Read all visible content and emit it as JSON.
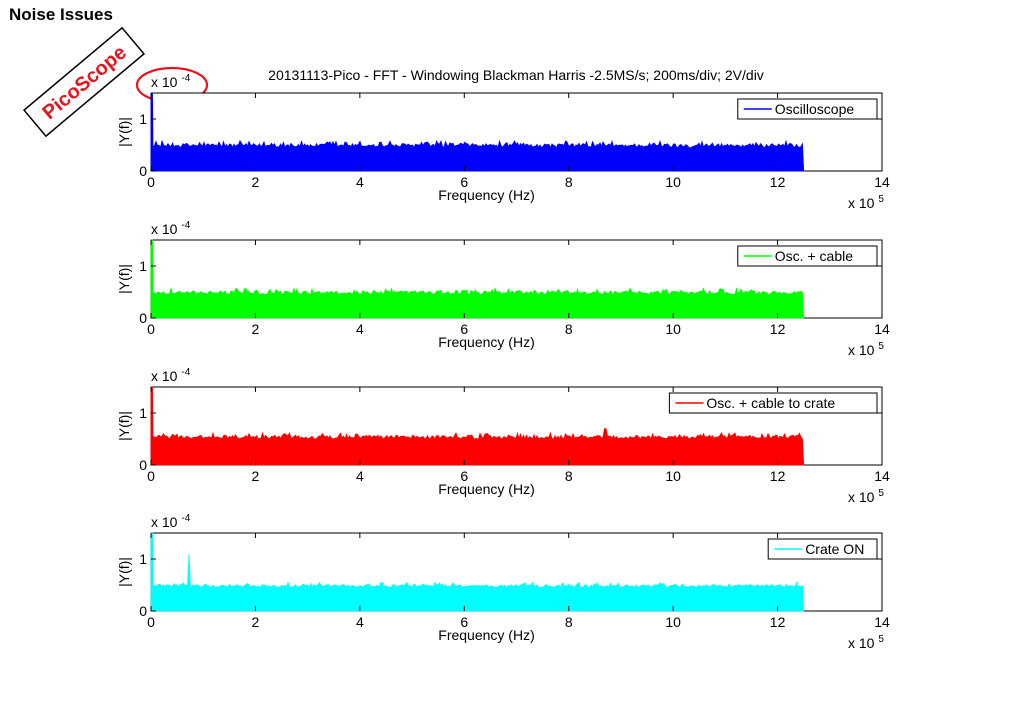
{
  "slide": {
    "title": "Noise Issues"
  },
  "stamp": {
    "text": "PicoScope",
    "color": "#e8141c"
  },
  "figure_title": "20131113-Pico - FFT - Windowing Blackman Harris -2.5MS/s; 200ms/div; 2V/div",
  "highlight": {
    "color": "#e8141c",
    "target": "y-exponent of first subplot"
  },
  "chart_data": [
    {
      "type": "area",
      "title": "",
      "xlabel": "Frequency (Hz)",
      "ylabel": "|Y(f)|",
      "x_exponent": "x 10",
      "x_exponent_power": "5",
      "y_exponent": "x 10",
      "y_exponent_power": "-4",
      "xlim": [
        0,
        14
      ],
      "ylim": [
        0,
        1.5
      ],
      "x_ticks": [
        "0",
        "2",
        "4",
        "6",
        "8",
        "10",
        "12",
        "14"
      ],
      "y_ticks": [
        "0",
        "1"
      ],
      "grid": false,
      "legend_position": "top-right",
      "series": [
        {
          "name": "Oscilloscope",
          "color": "#0000ff",
          "x_range": [
            0,
            12.5
          ],
          "noise_floor": 0.45,
          "noise_peak": 0.58,
          "initial_spike": 1.5,
          "spikes": []
        }
      ]
    },
    {
      "type": "area",
      "title": "",
      "xlabel": "Frequency (Hz)",
      "ylabel": "|Y(f)|",
      "x_exponent": "x 10",
      "x_exponent_power": "5",
      "y_exponent": "x 10",
      "y_exponent_power": "-4",
      "xlim": [
        0,
        14
      ],
      "ylim": [
        0,
        1.5
      ],
      "x_ticks": [
        "0",
        "2",
        "4",
        "6",
        "8",
        "10",
        "12",
        "14"
      ],
      "y_ticks": [
        "0",
        "1"
      ],
      "grid": false,
      "legend_position": "top-right",
      "series": [
        {
          "name": "Osc. + cable",
          "color": "#00ff00",
          "x_range": [
            0,
            12.5
          ],
          "noise_floor": 0.45,
          "noise_peak": 0.57,
          "initial_spike": 1.5,
          "spikes": []
        }
      ]
    },
    {
      "type": "area",
      "title": "",
      "xlabel": "Frequency (Hz)",
      "ylabel": "|Y(f)|",
      "x_exponent": "x 10",
      "x_exponent_power": "5",
      "y_exponent": "x 10",
      "y_exponent_power": "-4",
      "xlim": [
        0,
        14
      ],
      "ylim": [
        0,
        1.5
      ],
      "x_ticks": [
        "0",
        "2",
        "4",
        "6",
        "8",
        "10",
        "12",
        "14"
      ],
      "y_ticks": [
        "0",
        "1"
      ],
      "grid": false,
      "legend_position": "top-right",
      "series": [
        {
          "name": "Osc. + cable to crate",
          "color": "#ff0000",
          "x_range": [
            0,
            12.5
          ],
          "noise_floor": 0.5,
          "noise_peak": 0.62,
          "initial_spike": 1.5,
          "spikes": [
            {
              "x": 8.7,
              "y": 0.7
            }
          ]
        }
      ]
    },
    {
      "type": "area",
      "title": "",
      "xlabel": "Frequency (Hz)",
      "ylabel": "|Y(f)|",
      "x_exponent": "x 10",
      "x_exponent_power": "5",
      "y_exponent": "x 10",
      "y_exponent_power": "-4",
      "xlim": [
        0,
        14
      ],
      "ylim": [
        0,
        1.5
      ],
      "x_ticks": [
        "0",
        "2",
        "4",
        "6",
        "8",
        "10",
        "12",
        "14"
      ],
      "y_ticks": [
        "0",
        "1"
      ],
      "grid": false,
      "legend_position": "top-right",
      "series": [
        {
          "name": "Crate ON",
          "color": "#00ffff",
          "x_range": [
            0,
            12.5
          ],
          "noise_floor": 0.45,
          "noise_peak": 0.55,
          "initial_spike": 1.5,
          "spikes": [
            {
              "x": 0.72,
              "y": 1.1
            }
          ]
        }
      ]
    }
  ]
}
